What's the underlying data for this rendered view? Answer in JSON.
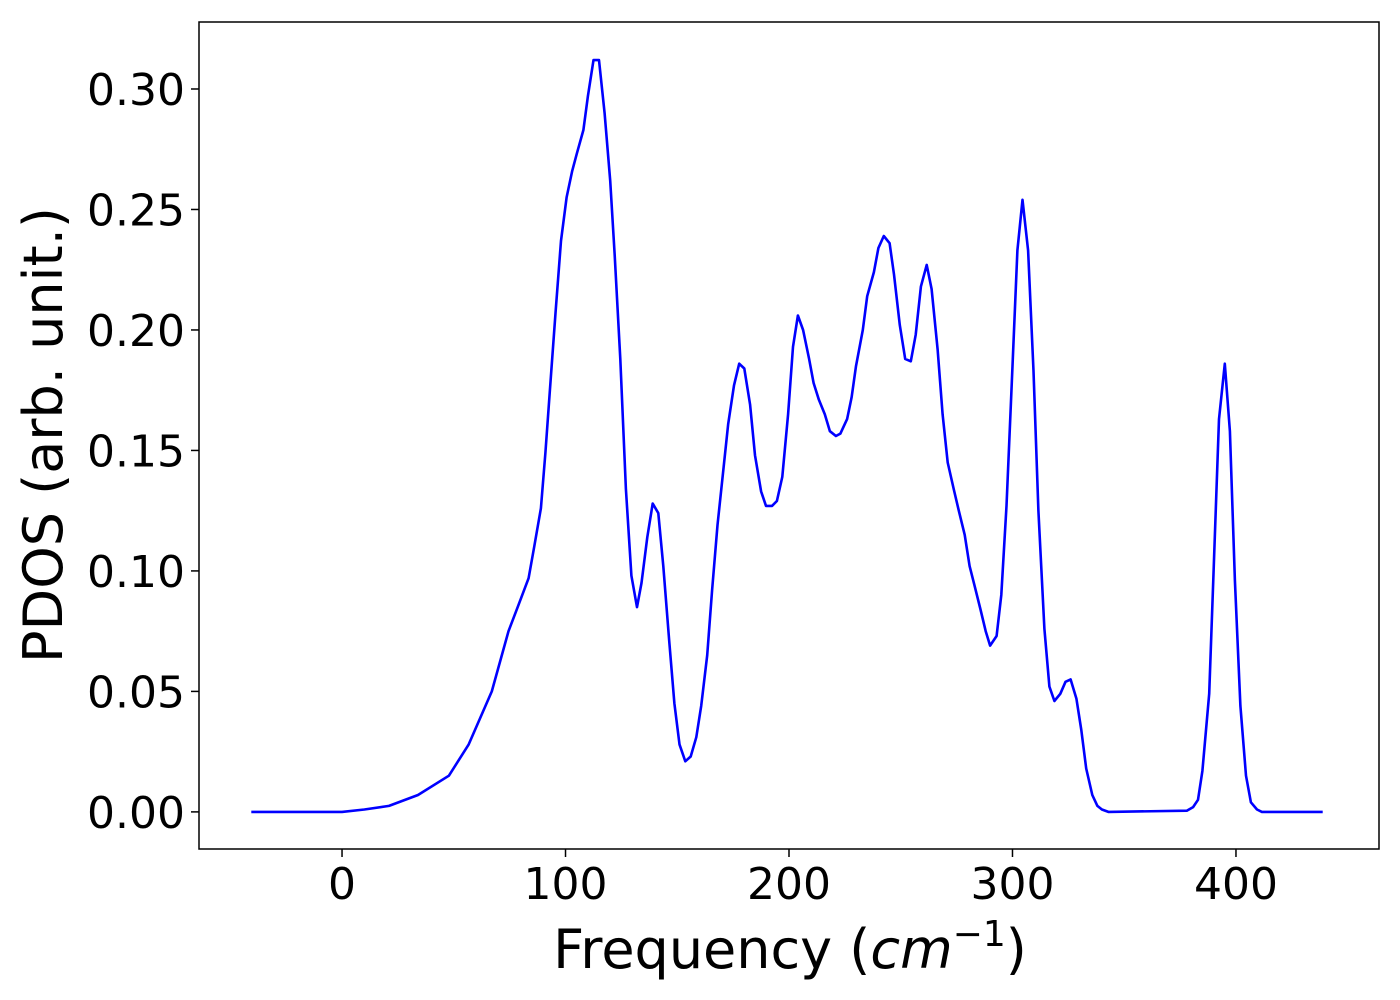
{
  "chart_data": {
    "type": "line",
    "xlabel": [
      "Frequency (",
      "cm",
      "−1",
      ")"
    ],
    "ylabel": "PDOS (arb. unit.)",
    "xlim": [
      -64,
      464
    ],
    "ylim": [
      -0.0154,
      0.3278
    ],
    "xticks": [
      0,
      100,
      200,
      300,
      400
    ],
    "yticks": [
      {
        "value": 0,
        "label": "0.00"
      },
      {
        "value": 0.05,
        "label": "0.05"
      },
      {
        "value": 0.1,
        "label": "0.10"
      },
      {
        "value": 0.15,
        "label": "0.15"
      },
      {
        "value": 0.2,
        "label": "0.20"
      },
      {
        "value": 0.25,
        "label": "0.25"
      },
      {
        "value": 0.3,
        "label": "0.30"
      }
    ],
    "series": [
      {
        "color": "#0000ff",
        "x": [
          -40.6,
          0,
          10,
          21,
          34,
          47.8,
          56.7,
          67,
          74.5,
          79,
          83.5,
          86,
          89,
          91,
          93,
          95.5,
          98,
          100.5,
          103,
          105,
          108,
          110,
          112.5,
          115,
          117.5,
          120,
          122,
          124.5,
          127,
          129.5,
          132,
          134,
          136.6,
          139,
          141.5,
          143.75,
          146.4,
          148.7,
          151,
          153.6,
          156,
          158.5,
          160.7,
          163.4,
          165.6,
          168,
          170.5,
          172.8,
          175.4,
          177.7,
          180,
          182.6,
          184.8,
          187.5,
          189.7,
          192.4,
          194.6,
          197,
          199.6,
          201.8,
          204,
          206.3,
          209,
          211,
          213.4,
          216,
          218.3,
          221,
          223,
          226,
          228,
          230,
          233,
          235,
          238,
          240,
          242.4,
          245,
          247,
          249.6,
          252,
          254.5,
          256.7,
          259,
          261.6,
          263.8,
          266.5,
          268.75,
          271,
          273.7,
          276,
          278.6,
          280.8,
          283,
          285.7,
          288,
          290,
          292.9,
          295,
          297.3,
          300,
          302.2,
          304.5,
          307,
          309.4,
          311.6,
          314.3,
          316.5,
          318.75,
          321.4,
          323.7,
          326,
          328.6,
          330.8,
          333,
          335.7,
          338,
          340,
          342.9,
          378,
          380.8,
          383,
          385,
          388,
          390,
          392.4,
          395,
          397.3,
          399.5,
          402,
          404.5,
          406.7,
          409.4,
          411.6,
          438.8
        ],
        "values": [
          0,
          0,
          0.001,
          0.0025,
          0.007,
          0.015,
          0.028,
          0.05,
          0.075,
          0.086,
          0.097,
          0.11,
          0.126,
          0.149,
          0.175,
          0.207,
          0.237,
          0.255,
          0.266,
          0.273,
          0.283,
          0.297,
          0.312,
          0.312,
          0.29,
          0.262,
          0.231,
          0.188,
          0.134,
          0.098,
          0.085,
          0.095,
          0.114,
          0.128,
          0.124,
          0.102,
          0.071,
          0.045,
          0.028,
          0.021,
          0.023,
          0.031,
          0.044,
          0.065,
          0.092,
          0.119,
          0.141,
          0.161,
          0.177,
          0.186,
          0.184,
          0.169,
          0.148,
          0.133,
          0.127,
          0.127,
          0.129,
          0.139,
          0.165,
          0.193,
          0.206,
          0.2,
          0.188,
          0.178,
          0.171,
          0.165,
          0.158,
          0.156,
          0.157,
          0.163,
          0.172,
          0.185,
          0.2,
          0.214,
          0.224,
          0.234,
          0.239,
          0.236,
          0.223,
          0.202,
          0.188,
          0.187,
          0.198,
          0.218,
          0.227,
          0.217,
          0.192,
          0.165,
          0.145,
          0.134,
          0.125,
          0.115,
          0.102,
          0.094,
          0.084,
          0.075,
          0.069,
          0.073,
          0.09,
          0.127,
          0.185,
          0.233,
          0.254,
          0.233,
          0.183,
          0.125,
          0.076,
          0.052,
          0.046,
          0.049,
          0.054,
          0.055,
          0.047,
          0.034,
          0.018,
          0.007,
          0.0025,
          0.001,
          0,
          0.0005,
          0.002,
          0.005,
          0.017,
          0.049,
          0.1,
          0.163,
          0.186,
          0.158,
          0.096,
          0.044,
          0.015,
          0.004,
          0.001,
          0,
          0
        ]
      }
    ]
  }
}
